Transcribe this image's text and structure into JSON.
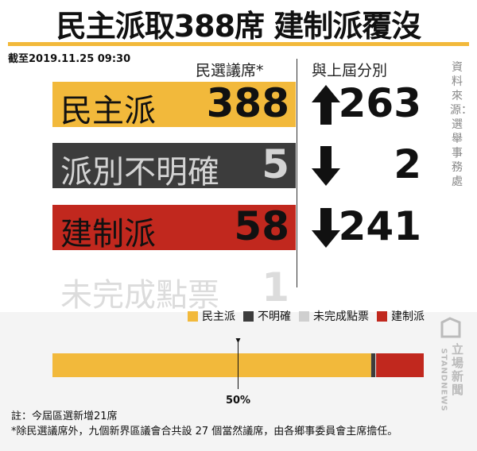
{
  "header": {
    "title": "民主派取388席 建制派覆沒",
    "timestamp": "截至2019.11.25 09:30"
  },
  "table": {
    "columns": [
      "民選議席*",
      "與上屆分別"
    ],
    "rows": [
      {
        "label": "民主派",
        "seats": 388,
        "change": 263,
        "direction": "up",
        "color": "#f2b93b",
        "text_color": "#111"
      },
      {
        "label": "派別不明確",
        "seats": 5,
        "change": 2,
        "direction": "down",
        "color": "#3c3c3c",
        "text_color": "#d4d4d4"
      },
      {
        "label": "建制派",
        "seats": 58,
        "change": 241,
        "direction": "down",
        "color": "#c1281e",
        "text_color": "#111"
      },
      {
        "label": "未完成點票",
        "seats": 1,
        "color": "none",
        "text_color": "#dcdcdc"
      }
    ]
  },
  "source": "資料來源：選舉事務處",
  "chart_data": {
    "type": "bar",
    "stacked": true,
    "orientation": "horizontal",
    "series": [
      {
        "name": "民主派",
        "color": "#f2b93b",
        "values": [
          388
        ]
      },
      {
        "name": "不明確",
        "color": "#3c3c3c",
        "values": [
          5
        ]
      },
      {
        "name": "未完成點票",
        "color": "#cfcfcf",
        "values": [
          1
        ]
      },
      {
        "name": "建制派",
        "color": "#c1281e",
        "values": [
          58
        ]
      }
    ],
    "marker": {
      "value": 50,
      "label": "50%"
    }
  },
  "notes": [
    "註：今屆區選新增21席",
    "*除民選議席外，九個新界區議會合共設 27 個當然議席，由各鄉事委員會主席擔任。"
  ],
  "logo": {
    "name": "立場新聞",
    "latin": "STANDNEWS"
  }
}
